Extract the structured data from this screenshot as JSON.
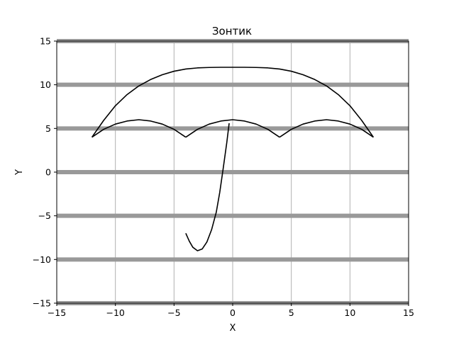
{
  "chart_data": {
    "type": "line",
    "title": "Зонтик",
    "xlabel": "X",
    "ylabel": "Y",
    "xlim": [
      -15,
      15
    ],
    "ylim": [
      -15,
      15
    ],
    "xticks": [
      -15,
      -10,
      -5,
      0,
      5,
      10,
      15
    ],
    "yticks": [
      -15,
      -10,
      -5,
      0,
      5,
      10,
      15
    ],
    "grid": "thin gray vertical lines at x ticks, thick gray horizontal lines at y ticks",
    "colors": {
      "series": "#000000",
      "grid_vertical": "#b0b0b0",
      "grid_horizontal": "#999999"
    },
    "series": [
      {
        "x": [
          -12,
          -11,
          -10,
          -9,
          -8,
          -7,
          -6,
          -5,
          -4,
          -3,
          -2,
          -1,
          0,
          1,
          2,
          3,
          4,
          5,
          6,
          7,
          8,
          9,
          10,
          11,
          12
        ],
        "y": [
          4,
          5.92,
          7.6,
          8.88,
          9.87,
          10.6,
          11.15,
          11.55,
          11.8,
          11.93,
          11.98,
          12.0,
          12.0,
          12.0,
          11.98,
          11.93,
          11.8,
          11.55,
          11.15,
          10.6,
          9.87,
          8.88,
          7.6,
          5.92,
          4
        ]
      },
      {
        "x": [
          -12,
          -11,
          -10,
          -9,
          -8,
          -7,
          -6,
          -5,
          -4
        ],
        "y": [
          4,
          4.9,
          5.5,
          5.85,
          6,
          5.85,
          5.5,
          4.9,
          4
        ]
      },
      {
        "x": [
          -4,
          -3,
          -2,
          -1,
          0,
          1,
          2,
          3,
          4
        ],
        "y": [
          4,
          4.9,
          5.5,
          5.85,
          6,
          5.85,
          5.5,
          4.9,
          4
        ]
      },
      {
        "x": [
          4,
          5,
          6,
          7,
          8,
          9,
          10,
          11,
          12
        ],
        "y": [
          4,
          4.9,
          5.5,
          5.85,
          6,
          5.85,
          5.5,
          4.9,
          4
        ]
      },
      {
        "x": [
          -0.3,
          -0.5,
          -0.8,
          -1.1,
          -1.4,
          -1.8,
          -2.2,
          -2.6,
          -3.0,
          -3.4,
          -3.7,
          -4.0
        ],
        "y": [
          5.6,
          3.4,
          0.5,
          -2.3,
          -4.6,
          -6.6,
          -8.0,
          -8.8,
          -9.0,
          -8.6,
          -7.9,
          -7.0
        ]
      }
    ]
  }
}
